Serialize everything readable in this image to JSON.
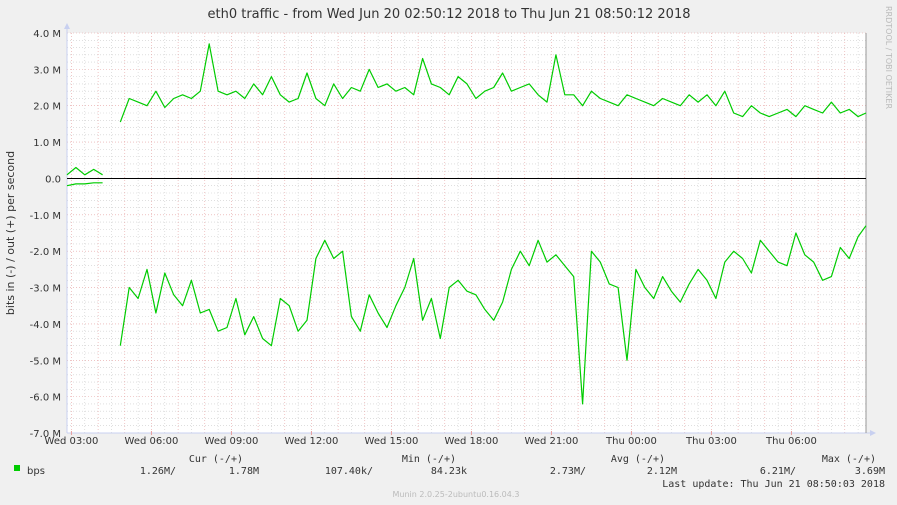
{
  "title": "eth0 traffic - from Wed Jun 20 02:50:12 2018 to Thu Jun 21 08:50:12 2018",
  "watermark": "RRDTOOL / TOBI OETIKER",
  "footer": "Munin 2.0.25-2ubuntu0.16.04.3",
  "colors": {
    "series": "#00cc00",
    "background": "#f0f0f0",
    "plot": "#ffffff",
    "major_grid": "#e5a0a0",
    "minor_grid": "#cccccc",
    "zero_line": "#000000"
  },
  "legend": {
    "headers": {
      "cur": "Cur (-/+)",
      "min": "Min (-/+)",
      "avg": "Avg (-/+)",
      "max": "Max (-/+)"
    },
    "rows": [
      {
        "name": "bps",
        "color": "#00cc00",
        "cur_in": "1.26M/",
        "cur_out": "1.78M",
        "min_in": "107.40k/",
        "min_out": "84.23k",
        "avg_in": "2.73M/",
        "avg_out": "2.12M",
        "max_in": "6.21M/",
        "max_out": "3.69M"
      }
    ],
    "last_update": "Last update: Thu Jun 21 08:50:03 2018"
  },
  "chart_data": {
    "type": "line",
    "title": "eth0 traffic - from Wed Jun 20 02:50:12 2018 to Thu Jun 21 08:50:12 2018",
    "xlabel": "",
    "ylabel": "bits in (-) / out (+) per second",
    "ylim": [
      -7000000,
      4000000
    ],
    "grid": true,
    "yticks": [
      {
        "v": 4000000,
        "label": "4.0 M"
      },
      {
        "v": 3000000,
        "label": "3.0 M"
      },
      {
        "v": 2000000,
        "label": "2.0 M"
      },
      {
        "v": 1000000,
        "label": "1.0 M"
      },
      {
        "v": 0,
        "label": "0.0"
      },
      {
        "v": -1000000,
        "label": "-1.0 M"
      },
      {
        "v": -2000000,
        "label": "-2.0 M"
      },
      {
        "v": -3000000,
        "label": "-3.0 M"
      },
      {
        "v": -4000000,
        "label": "-4.0 M"
      },
      {
        "v": -5000000,
        "label": "-5.0 M"
      },
      {
        "v": -6000000,
        "label": "-6.0 M"
      },
      {
        "v": -7000000,
        "label": "-7.0 M"
      }
    ],
    "xticks": [
      "Wed 03:00",
      "Wed 06:00",
      "Wed 09:00",
      "Wed 12:00",
      "Wed 15:00",
      "Wed 18:00",
      "Wed 21:00",
      "Thu 00:00",
      "Thu 03:00",
      "Thu 06:00"
    ],
    "x": [
      "Wed 02:50",
      "Wed 03:10",
      "Wed 03:30",
      "Wed 03:50",
      "Wed 04:10",
      "Wed 04:30",
      "Wed 04:50",
      "Wed 05:10",
      "Wed 05:30",
      "Wed 05:50",
      "Wed 06:10",
      "Wed 06:30",
      "Wed 06:50",
      "Wed 07:10",
      "Wed 07:30",
      "Wed 07:50",
      "Wed 08:10",
      "Wed 08:30",
      "Wed 08:50",
      "Wed 09:10",
      "Wed 09:30",
      "Wed 09:50",
      "Wed 10:10",
      "Wed 10:30",
      "Wed 10:50",
      "Wed 11:10",
      "Wed 11:30",
      "Wed 11:50",
      "Wed 12:10",
      "Wed 12:30",
      "Wed 12:50",
      "Wed 13:10",
      "Wed 13:30",
      "Wed 13:50",
      "Wed 14:10",
      "Wed 14:30",
      "Wed 14:50",
      "Wed 15:10",
      "Wed 15:30",
      "Wed 15:50",
      "Wed 16:10",
      "Wed 16:30",
      "Wed 16:50",
      "Wed 17:10",
      "Wed 17:30",
      "Wed 17:50",
      "Wed 18:10",
      "Wed 18:30",
      "Wed 18:50",
      "Wed 19:10",
      "Wed 19:30",
      "Wed 19:50",
      "Wed 20:10",
      "Wed 20:30",
      "Wed 20:50",
      "Wed 21:10",
      "Wed 21:30",
      "Wed 21:50",
      "Wed 22:10",
      "Wed 22:30",
      "Wed 22:50",
      "Wed 23:10",
      "Wed 23:30",
      "Wed 23:50",
      "Thu 00:10",
      "Thu 00:30",
      "Thu 00:50",
      "Thu 01:10",
      "Thu 01:30",
      "Thu 01:50",
      "Thu 02:10",
      "Thu 02:30",
      "Thu 02:50",
      "Thu 03:10",
      "Thu 03:30",
      "Thu 03:50",
      "Thu 04:10",
      "Thu 04:30",
      "Thu 04:50",
      "Thu 05:10",
      "Thu 05:30",
      "Thu 05:50",
      "Thu 06:10",
      "Thu 06:30",
      "Thu 06:50",
      "Thu 07:10",
      "Thu 07:30",
      "Thu 07:50",
      "Thu 08:10",
      "Thu 08:30",
      "Thu 08:50"
    ],
    "series": [
      {
        "name": "bps",
        "direction": "out (+)",
        "values": [
          0.1,
          0.3,
          0.1,
          0.25,
          0.1,
          null,
          1.55,
          2.2,
          2.1,
          2.0,
          2.4,
          1.95,
          2.2,
          2.3,
          2.2,
          2.4,
          3.7,
          2.4,
          2.3,
          2.4,
          2.2,
          2.6,
          2.3,
          2.8,
          2.3,
          2.1,
          2.2,
          2.9,
          2.2,
          2.0,
          2.6,
          2.2,
          2.5,
          2.4,
          3.0,
          2.5,
          2.6,
          2.4,
          2.5,
          2.3,
          3.3,
          2.6,
          2.5,
          2.3,
          2.8,
          2.6,
          2.2,
          2.4,
          2.5,
          2.9,
          2.4,
          2.5,
          2.6,
          2.3,
          2.1,
          3.4,
          2.3,
          2.3,
          2.0,
          2.4,
          2.2,
          2.1,
          2.0,
          2.3,
          2.2,
          2.1,
          2.0,
          2.2,
          2.1,
          2.0,
          2.3,
          2.1,
          2.3,
          2.0,
          2.4,
          1.8,
          1.7,
          2.0,
          1.8,
          1.7,
          1.8,
          1.9,
          1.7,
          2.0,
          1.9,
          1.8,
          2.1,
          1.8,
          1.9,
          1.7,
          1.8
        ]
      },
      {
        "name": "bps",
        "direction": "in (-)",
        "values": [
          -0.2,
          -0.15,
          -0.15,
          -0.12,
          -0.12,
          null,
          -4.6,
          -3.0,
          -3.3,
          -2.5,
          -3.7,
          -2.6,
          -3.2,
          -3.5,
          -2.8,
          -3.7,
          -3.6,
          -4.2,
          -4.1,
          -3.3,
          -4.3,
          -3.8,
          -4.4,
          -4.6,
          -3.3,
          -3.5,
          -4.2,
          -3.9,
          -2.2,
          -1.7,
          -2.2,
          -2.0,
          -3.8,
          -4.2,
          -3.2,
          -3.7,
          -4.1,
          -3.5,
          -3.0,
          -2.2,
          -3.9,
          -3.3,
          -4.4,
          -3.0,
          -2.8,
          -3.1,
          -3.2,
          -3.6,
          -3.9,
          -3.4,
          -2.5,
          -2.0,
          -2.4,
          -1.7,
          -2.3,
          -2.1,
          -2.4,
          -2.7,
          -6.2,
          -2.0,
          -2.3,
          -2.9,
          -3.0,
          -5.0,
          -2.5,
          -3.0,
          -3.3,
          -2.7,
          -3.1,
          -3.4,
          -2.9,
          -2.5,
          -2.8,
          -3.3,
          -2.3,
          -2.0,
          -2.2,
          -2.6,
          -1.7,
          -2.0,
          -2.3,
          -2.4,
          -1.5,
          -2.1,
          -2.3,
          -2.8,
          -2.7,
          -1.9,
          -2.2,
          -1.6,
          -1.3
        ]
      }
    ],
    "value_unit": "M"
  }
}
